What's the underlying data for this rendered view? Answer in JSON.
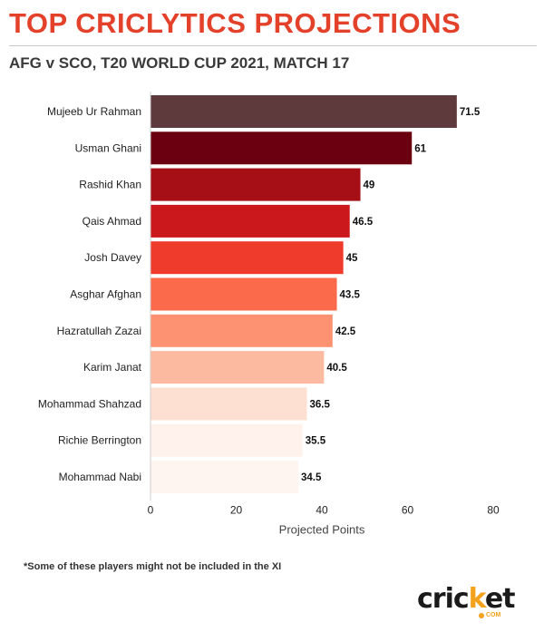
{
  "header": {
    "title": "TOP CRICLYTICS PROJECTIONS",
    "subtitle": "AFG v SCO, T20 WORLD CUP 2021, MATCH 17"
  },
  "footnote": "*Some of these players might not be included in the XI",
  "logo": {
    "prefix": "cric",
    "accent": "k",
    "suffix": "et",
    "sub": "COM"
  },
  "chart_data": {
    "type": "bar",
    "orientation": "horizontal",
    "title": "TOP CRICLYTICS PROJECTIONS",
    "subtitle": "AFG v SCO, T20 WORLD CUP 2021, MATCH 17",
    "xlabel": "Projected Points",
    "ylabel": "",
    "xlim": [
      0,
      80
    ],
    "xticks": [
      0,
      20,
      40,
      60,
      80
    ],
    "grid": false,
    "categories": [
      "Mujeeb Ur Rahman",
      "Usman Ghani",
      "Rashid Khan",
      "Qais Ahmad",
      "Josh Davey",
      "Asghar Afghan",
      "Hazratullah Zazai",
      "Karim Janat",
      "Mohammad Shahzad",
      "Richie Berrington",
      "Mohammad Nabi"
    ],
    "values": [
      71.5,
      61,
      49,
      46.5,
      45,
      43.5,
      42.5,
      40.5,
      36.5,
      35.5,
      34.5
    ],
    "value_labels": [
      "71.5",
      "61",
      "49",
      "46.5",
      "45",
      "43.5",
      "42.5",
      "40.5",
      "36.5",
      "35.5",
      "34.5"
    ],
    "colors": [
      "#5e3a3c",
      "#6b0010",
      "#a50f15",
      "#cb181d",
      "#ef3b2c",
      "#fb6a4a",
      "#fc9272",
      "#fcbba1",
      "#fee0d2",
      "#fff2ec",
      "#fff5f0"
    ]
  }
}
